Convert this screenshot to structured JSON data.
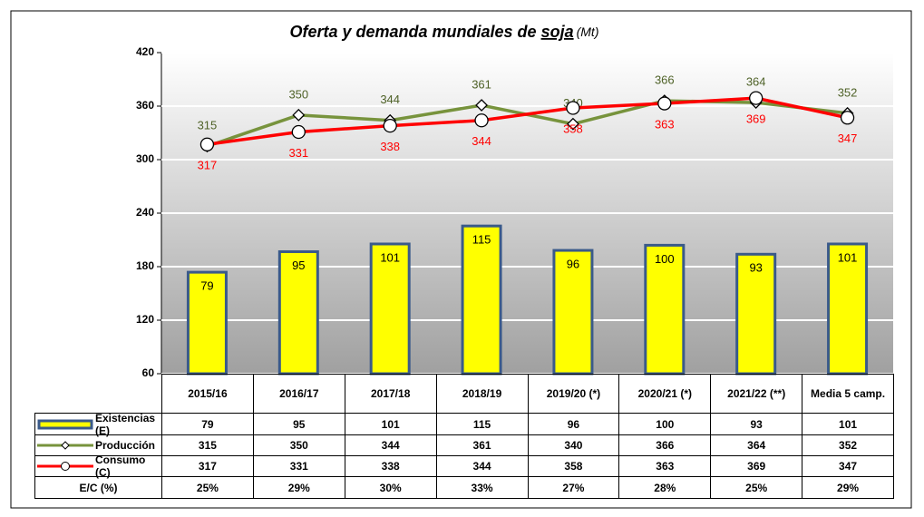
{
  "chart_data": {
    "type": "bar-line",
    "title": "Oferta y demanda mundiales de ",
    "title_emphasis": "soja",
    "title_unit": "(Mt)",
    "categories": [
      "2015/16",
      "2016/17",
      "2017/18",
      "2018/19",
      "2019/20 (*)",
      "2020/21 (*)",
      "2021/22 (**)",
      "Media 5 camp."
    ],
    "ylim": [
      60,
      420
    ],
    "yticks": [
      60,
      120,
      180,
      240,
      300,
      360,
      420
    ],
    "y2lim": [
      0,
      250
    ],
    "grid": true,
    "series": [
      {
        "name": "Existencias (E)",
        "type": "bar",
        "axis": "y2",
        "color": "#ffff00",
        "edge_color": "#3a5a8a",
        "label_color": "#000000",
        "values": [
          79,
          95,
          101,
          115,
          96,
          100,
          93,
          101
        ]
      },
      {
        "name": "Producción",
        "type": "line",
        "color": "#77933c",
        "label_color": "#4f6228",
        "marker": "diamond",
        "values": [
          315,
          350,
          344,
          361,
          340,
          366,
          364,
          352
        ]
      },
      {
        "name": "Consumo (C)",
        "type": "line",
        "color": "#ff0000",
        "label_color": "#ff0000",
        "marker": "circle",
        "values": [
          317,
          331,
          338,
          344,
          358,
          363,
          369,
          347
        ]
      }
    ],
    "ratio_row": {
      "name": "E/C (%)",
      "values": [
        "25%",
        "29%",
        "30%",
        "33%",
        "27%",
        "28%",
        "25%",
        "29%"
      ]
    }
  }
}
